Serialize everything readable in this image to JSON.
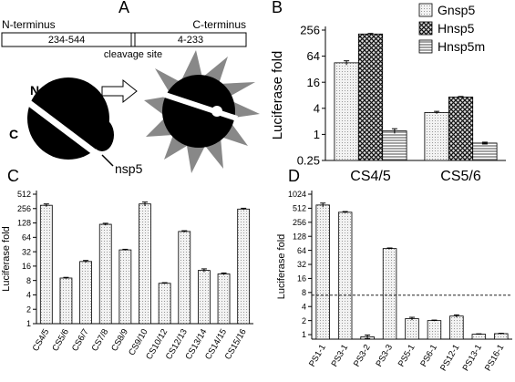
{
  "diagram": {
    "panel": "A",
    "n_terminus": "N-terminus",
    "c_terminus": "C-terminus",
    "left_box": "234-544",
    "right_box": "4-233",
    "cleavage": "cleavage site",
    "n": "N",
    "c": "C",
    "enzyme": "nsp5"
  },
  "chart_data": [
    {
      "type": "bar",
      "panel": "B",
      "ylabel": "Luciferase fold",
      "log_base": 2,
      "categories": [
        "CS4/5",
        "CS5/6"
      ],
      "series": [
        {
          "name": "Gnsp5",
          "pattern": "dots",
          "values": [
            45,
            3.2
          ],
          "errors": [
            5,
            0.2
          ]
        },
        {
          "name": "Hnsp5",
          "pattern": "crosshatch",
          "values": [
            208,
            7.3
          ],
          "errors": [
            6,
            0.2
          ]
        },
        {
          "name": "Hnsp5m",
          "pattern": "hstripes",
          "values": [
            1.2,
            0.63
          ],
          "errors": [
            0.15,
            0.03
          ]
        }
      ],
      "ylim": [
        0.25,
        256
      ],
      "yticks": [
        0.25,
        1,
        4,
        16,
        64,
        256
      ],
      "legend": "top-right"
    },
    {
      "type": "bar",
      "panel": "C",
      "ylabel": "Luciferase fold",
      "log_base": 2,
      "pattern": "dots",
      "categories": [
        "CS4/5",
        "CS5/6",
        "CS6/7",
        "CS7/8",
        "CS8/9",
        "CS9/10",
        "CS10/12",
        "CS12/13",
        "CS13/14",
        "CS14/15",
        "CS15/16"
      ],
      "values": [
        300,
        9,
        20,
        120,
        35,
        320,
        7,
        85,
        13,
        11,
        250
      ],
      "errors": [
        20,
        0.3,
        1,
        6,
        1,
        30,
        0.2,
        3,
        1,
        0.5,
        10
      ],
      "ylim": [
        1,
        512
      ],
      "yticks": [
        1,
        2,
        4,
        8,
        16,
        32,
        64,
        128,
        256,
        512
      ]
    },
    {
      "type": "bar",
      "panel": "D",
      "ylabel": "Luciferase fold",
      "log_base": 2,
      "pattern": "dots",
      "categories": [
        "PS1-1",
        "PS3-1",
        "PS3-2",
        "PS3-3",
        "PS5-1",
        "PS6-1",
        "PS12-1",
        "PS13-1",
        "PS16-1"
      ],
      "values": [
        600,
        420,
        0.9,
        70,
        2.2,
        2,
        2.5,
        1.02,
        1.05
      ],
      "errors": [
        60,
        15,
        0.08,
        2,
        0.15,
        0.05,
        0.15,
        0.02,
        0.02
      ],
      "threshold": 7,
      "ylim": [
        0.8,
        1024
      ],
      "yticks": [
        1,
        2,
        4,
        8,
        16,
        32,
        64,
        128,
        256,
        512,
        1024
      ]
    }
  ]
}
